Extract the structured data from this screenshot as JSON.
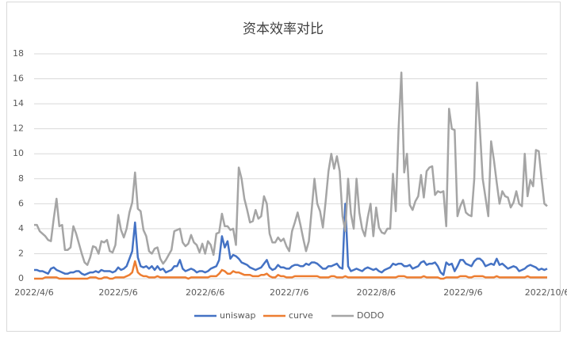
{
  "chart_data": {
    "type": "line",
    "title": "资本效率对比",
    "categories": [
      "2022/4/6",
      null,
      null,
      null,
      null,
      null,
      null,
      null,
      null,
      null,
      null,
      null,
      null,
      null,
      null,
      null,
      null,
      null,
      null,
      null,
      null,
      null,
      null,
      null,
      null,
      null,
      null,
      null,
      null,
      null,
      "2022/5/6",
      null,
      null,
      null,
      null,
      null,
      null,
      null,
      null,
      null,
      null,
      null,
      null,
      null,
      null,
      null,
      null,
      null,
      null,
      null,
      null,
      null,
      null,
      null,
      null,
      null,
      null,
      null,
      null,
      null,
      null,
      "2022/6/6",
      null,
      null,
      null,
      null,
      null,
      null,
      null,
      null,
      null,
      null,
      null,
      null,
      null,
      null,
      null,
      null,
      null,
      null,
      null,
      null,
      null,
      null,
      null,
      null,
      null,
      null,
      null,
      null,
      null,
      "2022/7/6",
      null,
      null,
      null,
      null,
      null,
      null,
      null,
      null,
      null,
      null,
      null,
      null,
      null,
      null,
      null,
      null,
      null,
      null,
      null,
      null,
      null,
      null,
      null,
      null,
      null,
      null,
      null,
      null,
      null,
      null,
      "2022/8/6",
      null,
      null,
      null,
      null,
      null,
      null,
      null,
      null,
      null,
      null,
      null,
      null,
      null,
      null,
      null,
      null,
      null,
      null,
      null,
      null,
      null,
      null,
      null,
      null,
      null,
      null,
      null,
      null,
      null,
      null,
      "2022/9/6",
      null,
      null,
      null,
      null,
      null,
      null,
      null,
      null,
      null,
      null,
      null,
      null,
      null,
      null,
      null,
      null,
      null,
      null,
      null,
      null,
      null,
      null,
      null,
      null,
      null,
      null,
      null,
      null,
      null,
      "2022/10/6"
    ],
    "series": [
      {
        "name": "uniswap",
        "color": "#4472c4",
        "values": [
          0.7,
          0.7,
          0.6,
          0.6,
          0.5,
          0.4,
          0.8,
          0.9,
          0.7,
          0.6,
          0.5,
          0.4,
          0.4,
          0.5,
          0.5,
          0.6,
          0.6,
          0.4,
          0.3,
          0.4,
          0.5,
          0.5,
          0.6,
          0.5,
          0.7,
          0.6,
          0.6,
          0.6,
          0.5,
          0.6,
          0.9,
          0.7,
          0.8,
          1.0,
          1.6,
          2.2,
          4.5,
          1.7,
          1.0,
          0.9,
          1.0,
          0.8,
          1.0,
          0.7,
          1.0,
          0.7,
          0.8,
          0.5,
          0.6,
          0.7,
          1.0,
          1.0,
          1.5,
          0.8,
          0.6,
          0.7,
          0.8,
          0.7,
          0.5,
          0.6,
          0.6,
          0.5,
          0.6,
          0.8,
          0.9,
          1.0,
          1.5,
          3.4,
          2.5,
          3.0,
          1.6,
          1.9,
          1.8,
          1.6,
          1.3,
          1.2,
          1.1,
          0.9,
          0.8,
          0.7,
          0.8,
          0.9,
          1.2,
          1.5,
          0.9,
          0.7,
          0.8,
          1.1,
          0.9,
          0.9,
          0.8,
          0.8,
          1.0,
          1.1,
          1.1,
          1.0,
          1.0,
          1.2,
          1.1,
          1.3,
          1.3,
          1.2,
          1.0,
          0.8,
          0.8,
          1.0,
          1.0,
          1.1,
          1.2,
          0.9,
          0.8,
          6.0,
          1.0,
          0.6,
          0.7,
          0.8,
          0.7,
          0.6,
          0.8,
          0.9,
          0.8,
          0.7,
          0.8,
          0.6,
          0.5,
          0.7,
          0.8,
          0.9,
          1.2,
          1.1,
          1.2,
          1.2,
          1.0,
          1.0,
          1.1,
          0.8,
          0.9,
          1.0,
          1.3,
          1.4,
          1.1,
          1.2,
          1.2,
          1.3,
          1.0,
          0.5,
          0.3,
          1.3,
          1.1,
          1.2,
          0.6,
          1.0,
          1.5,
          1.5,
          1.2,
          1.1,
          1.0,
          1.4,
          1.6,
          1.6,
          1.4,
          1.0,
          1.1,
          1.2,
          1.1,
          1.6,
          1.1,
          1.2,
          1.0,
          0.8,
          0.9,
          1.0,
          0.9,
          0.6,
          0.7,
          0.8,
          1.0,
          1.1,
          1.0,
          0.9,
          0.7,
          0.8,
          0.7,
          0.8
        ]
      },
      {
        "name": "curve",
        "color": "#ed7d31",
        "values": [
          0.0,
          0.0,
          0.0,
          0.0,
          0.1,
          0.1,
          0.1,
          0.1,
          0.1,
          0.0,
          0.0,
          0.0,
          0.0,
          0.0,
          0.0,
          0.0,
          0.0,
          0.0,
          0.0,
          0.0,
          0.1,
          0.1,
          0.1,
          0.0,
          0.0,
          0.1,
          0.1,
          0.0,
          0.0,
          0.1,
          0.1,
          0.1,
          0.1,
          0.2,
          0.3,
          0.5,
          1.4,
          0.5,
          0.3,
          0.2,
          0.2,
          0.1,
          0.1,
          0.1,
          0.2,
          0.1,
          0.1,
          0.1,
          0.1,
          0.1,
          0.1,
          0.1,
          0.1,
          0.1,
          0.1,
          0.0,
          0.1,
          0.1,
          0.1,
          0.1,
          0.1,
          0.1,
          0.1,
          0.2,
          0.2,
          0.2,
          0.4,
          0.7,
          0.6,
          0.4,
          0.4,
          0.6,
          0.5,
          0.5,
          0.4,
          0.3,
          0.3,
          0.3,
          0.2,
          0.2,
          0.2,
          0.3,
          0.3,
          0.4,
          0.2,
          0.1,
          0.1,
          0.3,
          0.2,
          0.2,
          0.1,
          0.1,
          0.1,
          0.2,
          0.2,
          0.2,
          0.2,
          0.2,
          0.2,
          0.2,
          0.2,
          0.2,
          0.1,
          0.1,
          0.1,
          0.1,
          0.2,
          0.2,
          0.1,
          0.1,
          0.1,
          0.2,
          0.1,
          0.1,
          0.1,
          0.1,
          0.1,
          0.1,
          0.1,
          0.1,
          0.1,
          0.1,
          0.1,
          0.1,
          0.1,
          0.1,
          0.1,
          0.1,
          0.1,
          0.1,
          0.2,
          0.2,
          0.2,
          0.1,
          0.1,
          0.1,
          0.1,
          0.1,
          0.1,
          0.2,
          0.1,
          0.1,
          0.1,
          0.1,
          0.1,
          0.0,
          0.0,
          0.1,
          0.1,
          0.1,
          0.1,
          0.1,
          0.2,
          0.2,
          0.2,
          0.1,
          0.1,
          0.2,
          0.2,
          0.2,
          0.2,
          0.1,
          0.1,
          0.1,
          0.1,
          0.2,
          0.1,
          0.1,
          0.1,
          0.1,
          0.1,
          0.1,
          0.1,
          0.1,
          0.1,
          0.1,
          0.2,
          0.1,
          0.1,
          0.1,
          0.1,
          0.1,
          0.1,
          0.1
        ]
      },
      {
        "name": "DODO",
        "color": "#a5a5a5",
        "values": [
          4.3,
          4.3,
          3.8,
          3.6,
          3.4,
          3.1,
          3.0,
          4.8,
          6.4,
          4.2,
          4.3,
          2.3,
          2.3,
          2.5,
          4.2,
          3.6,
          2.8,
          2.0,
          1.3,
          1.1,
          1.7,
          2.6,
          2.5,
          2.0,
          3.0,
          2.9,
          3.1,
          2.2,
          2.1,
          2.7,
          5.1,
          3.9,
          3.3,
          4.0,
          5.3,
          6.1,
          8.5,
          5.6,
          5.4,
          3.9,
          3.4,
          2.2,
          2.0,
          2.4,
          2.5,
          1.6,
          1.2,
          1.5,
          1.9,
          2.3,
          3.8,
          3.9,
          4.0,
          2.9,
          2.6,
          2.8,
          3.5,
          2.9,
          2.7,
          2.1,
          2.8,
          2.0,
          3.0,
          2.7,
          1.9,
          3.6,
          3.7,
          5.2,
          4.2,
          4.2,
          3.9,
          4.0,
          2.7,
          8.9,
          8.0,
          6.4,
          5.5,
          4.5,
          4.6,
          5.5,
          4.8,
          5.0,
          6.6,
          6.0,
          3.6,
          2.9,
          2.9,
          3.3,
          3.0,
          3.2,
          2.6,
          2.2,
          3.8,
          4.5,
          5.3,
          4.3,
          3.2,
          2.2,
          3.0,
          5.5,
          8.0,
          6.0,
          5.4,
          4.1,
          6.2,
          8.6,
          10.0,
          8.8,
          9.8,
          8.6,
          5.0,
          3.8,
          8.0,
          5.2,
          4.0,
          8.0,
          5.3,
          4.0,
          3.4,
          4.9,
          6.0,
          3.4,
          5.7,
          4.1,
          3.7,
          3.6,
          4.0,
          4.0,
          8.4,
          5.4,
          12.0,
          16.5,
          8.5,
          10.0,
          5.9,
          5.5,
          6.2,
          6.6,
          8.3,
          6.5,
          8.6,
          8.9,
          9.0,
          6.7,
          7.0,
          6.9,
          7.0,
          4.2,
          13.6,
          12.0,
          11.9,
          5.0,
          5.8,
          6.3,
          5.3,
          5.1,
          5.0,
          8.0,
          15.7,
          12.0,
          8.0,
          6.5,
          5.0,
          11.0,
          9.5,
          7.7,
          6.0,
          7.0,
          6.6,
          6.5,
          5.7,
          6.1,
          7.0,
          6.0,
          5.8,
          10.0,
          6.6,
          7.9,
          7.4,
          10.3,
          10.2,
          8.0,
          6.0,
          5.8
        ]
      }
    ],
    "ylim": [
      0,
      18
    ],
    "yticks": [
      0,
      2,
      4,
      6,
      8,
      10,
      12,
      14,
      16,
      18
    ],
    "grid": true,
    "legend": "bottom"
  }
}
